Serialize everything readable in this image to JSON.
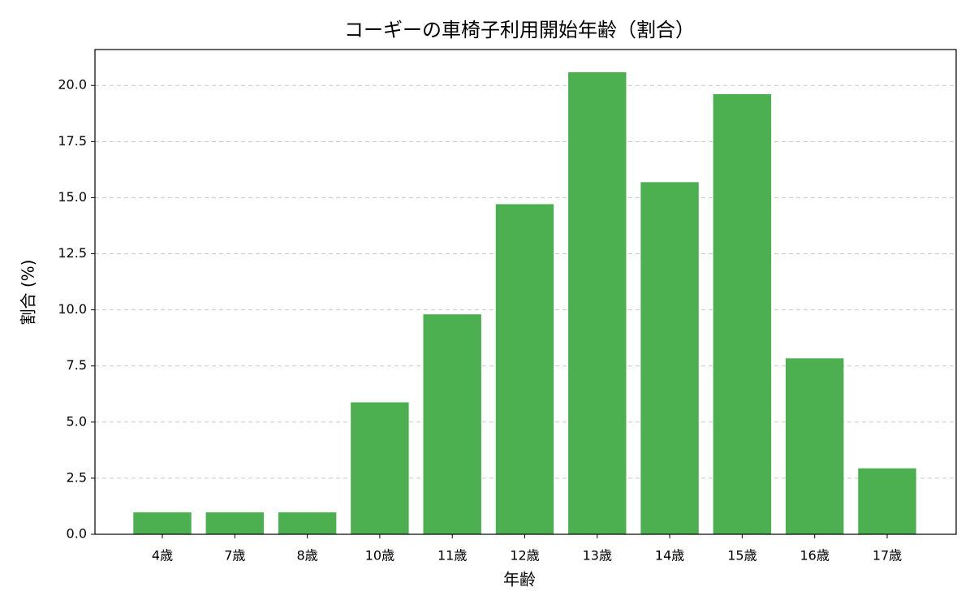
{
  "chart_data": {
    "type": "bar",
    "title": "コーギーの車椅子利用開始年齢（割合）",
    "x_label": "年齢",
    "y_label": "割合 (%)",
    "categories": [
      "4歳",
      "7歳",
      "8歳",
      "10歳",
      "11歳",
      "12歳",
      "13歳",
      "14歳",
      "15歳",
      "16歳",
      "17歳"
    ],
    "values": [
      0.98,
      0.98,
      0.98,
      5.88,
      9.8,
      14.71,
      20.59,
      15.69,
      19.61,
      7.84,
      2.94
    ],
    "color": "#4caf50",
    "ylim": [
      0,
      21.6
    ],
    "yticks": [
      {
        "value": 0,
        "label": "0.0"
      },
      2.5,
      {
        "value": 5,
        "label": "5.0"
      },
      7.5,
      {
        "value": 10,
        "label": "10.0"
      },
      12.5,
      {
        "value": 15,
        "label": "15.0"
      },
      17.5,
      {
        "value": 20,
        "label": "20.0"
      }
    ],
    "grid": true
  }
}
